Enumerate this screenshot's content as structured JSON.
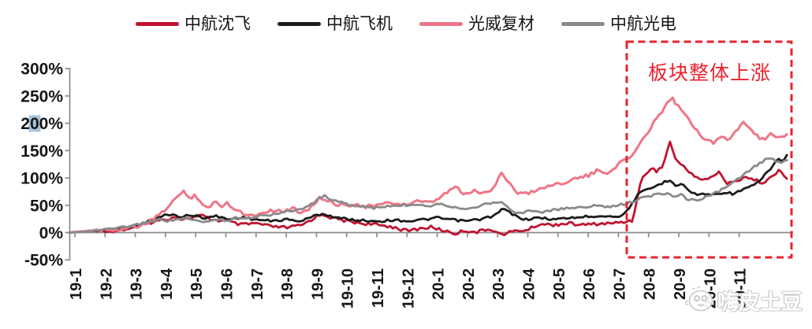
{
  "colors": {
    "background": "#ffffff",
    "axis": "#8c8c8c",
    "axis_text": "#161616",
    "annotation_red": "#e8232e",
    "selection_highlight": "#a9c2d9",
    "series_red": "#c01430",
    "series_black": "#1c1c1c",
    "series_pink": "#ee7586",
    "series_gray": "#8a8a8a",
    "watermark_outline": "#c9c9c9"
  },
  "legend": {
    "items": [
      {
        "label": "中航沈飞",
        "color": "#c01430"
      },
      {
        "label": "中航飞机",
        "color": "#1c1c1c"
      },
      {
        "label": "光威复材",
        "color": "#ee7586"
      },
      {
        "label": "中航光电",
        "color": "#8a8a8a"
      }
    ]
  },
  "annotation": {
    "label": "板块整体上涨"
  },
  "watermark": {
    "text": "嗨皮土豆",
    "icon": "potato-face-icon"
  },
  "quirks": {
    "selection_highlight_on_y_label": "200%",
    "highlighted_char": "0"
  },
  "chart_data": {
    "type": "line",
    "title": "",
    "xlabel": "",
    "ylabel": "",
    "grid": false,
    "legend_position": "top",
    "y_axis": {
      "min": -50,
      "max": 300,
      "step": 50,
      "unit": "%",
      "tick_labels": [
        "300%",
        "250%",
        "200%",
        "150%",
        "100%",
        "50%",
        "0%",
        "-50%"
      ]
    },
    "x_axis": {
      "tick_labels": [
        "19-1",
        "19-2",
        "19-3",
        "19-4",
        "19-5",
        "19-6",
        "19-7",
        "19-8",
        "19-9",
        "19-10",
        "19-11",
        "19-12",
        "20-1",
        "20-2",
        "20-3",
        "20-4",
        "20-5",
        "20-6",
        "20-7",
        "20-8",
        "20-9",
        "20-10",
        "20-11"
      ],
      "label_rotation_deg": -90,
      "points_format": "series points are [month_index, cumulative_return_pct]; month_index 0 = 19-1, 22 = 20-11; data extends ~1.5 months past last tick"
    },
    "annotation_box": {
      "label": "板块整体上涨",
      "from_month_index": 18.3,
      "to_month_index": 23.7,
      "color": "#e8232e"
    },
    "series": [
      {
        "name": "中航沈飞",
        "color": "#c01430",
        "width": 2.8,
        "points": [
          [
            -0.18,
            0
          ],
          [
            0.3,
            2
          ],
          [
            0.8,
            4
          ],
          [
            1.2,
            2
          ],
          [
            1.7,
            6
          ],
          [
            2.2,
            14
          ],
          [
            2.6,
            20
          ],
          [
            3.0,
            24
          ],
          [
            3.3,
            29
          ],
          [
            3.6,
            24
          ],
          [
            3.9,
            28
          ],
          [
            4.2,
            31
          ],
          [
            4.5,
            24
          ],
          [
            5.0,
            21
          ],
          [
            5.5,
            14
          ],
          [
            6.0,
            17
          ],
          [
            6.5,
            11
          ],
          [
            7.0,
            9
          ],
          [
            7.5,
            13
          ],
          [
            7.9,
            26
          ],
          [
            8.2,
            34
          ],
          [
            8.5,
            27
          ],
          [
            9.0,
            21
          ],
          [
            9.5,
            17
          ],
          [
            10.0,
            14
          ],
          [
            10.5,
            11
          ],
          [
            11.0,
            3
          ],
          [
            11.4,
            7
          ],
          [
            11.8,
            10
          ],
          [
            12.2,
            4
          ],
          [
            12.6,
            -2
          ],
          [
            12.9,
            4
          ],
          [
            13.3,
            1
          ],
          [
            13.8,
            7
          ],
          [
            14.1,
            -4
          ],
          [
            14.5,
            2
          ],
          [
            15.0,
            5
          ],
          [
            15.4,
            16
          ],
          [
            15.8,
            14
          ],
          [
            16.3,
            17
          ],
          [
            16.8,
            14
          ],
          [
            17.3,
            16
          ],
          [
            17.8,
            17
          ],
          [
            18.1,
            19
          ],
          [
            18.45,
            22
          ],
          [
            18.6,
            55
          ],
          [
            18.75,
            95
          ],
          [
            18.9,
            108
          ],
          [
            19.1,
            118
          ],
          [
            19.3,
            112
          ],
          [
            19.5,
            125
          ],
          [
            19.7,
            168
          ],
          [
            19.85,
            140
          ],
          [
            20.0,
            128
          ],
          [
            20.2,
            118
          ],
          [
            20.5,
            105
          ],
          [
            20.8,
            96
          ],
          [
            21.1,
            101
          ],
          [
            21.35,
            112
          ],
          [
            21.6,
            89
          ],
          [
            21.9,
            94
          ],
          [
            22.2,
            103
          ],
          [
            22.5,
            96
          ],
          [
            22.8,
            92
          ],
          [
            23.1,
            102
          ],
          [
            23.35,
            114
          ],
          [
            23.6,
            100
          ]
        ]
      },
      {
        "name": "中航飞机",
        "color": "#1c1c1c",
        "width": 2.8,
        "points": [
          [
            -0.18,
            0
          ],
          [
            0.4,
            3
          ],
          [
            0.9,
            5
          ],
          [
            1.4,
            7
          ],
          [
            1.9,
            10
          ],
          [
            2.4,
            20
          ],
          [
            2.8,
            28
          ],
          [
            3.1,
            34
          ],
          [
            3.5,
            29
          ],
          [
            3.9,
            32
          ],
          [
            4.3,
            27
          ],
          [
            4.7,
            30
          ],
          [
            5.1,
            24
          ],
          [
            5.5,
            28
          ],
          [
            6.0,
            24
          ],
          [
            6.5,
            21
          ],
          [
            7.0,
            24
          ],
          [
            7.5,
            21
          ],
          [
            7.9,
            30
          ],
          [
            8.2,
            35
          ],
          [
            8.6,
            28
          ],
          [
            9.1,
            24
          ],
          [
            9.6,
            22
          ],
          [
            10.1,
            21
          ],
          [
            10.6,
            23
          ],
          [
            11.1,
            21
          ],
          [
            11.6,
            24
          ],
          [
            12.0,
            27
          ],
          [
            12.4,
            24
          ],
          [
            12.9,
            21
          ],
          [
            13.4,
            24
          ],
          [
            13.9,
            31
          ],
          [
            14.2,
            44
          ],
          [
            14.5,
            33
          ],
          [
            14.9,
            24
          ],
          [
            15.4,
            27
          ],
          [
            15.9,
            24
          ],
          [
            16.4,
            27
          ],
          [
            16.9,
            29
          ],
          [
            17.4,
            31
          ],
          [
            17.9,
            29
          ],
          [
            18.2,
            33
          ],
          [
            18.5,
            58
          ],
          [
            18.7,
            72
          ],
          [
            18.95,
            78
          ],
          [
            19.2,
            84
          ],
          [
            19.5,
            92
          ],
          [
            19.75,
            97
          ],
          [
            19.9,
            86
          ],
          [
            20.1,
            90
          ],
          [
            20.35,
            76
          ],
          [
            20.6,
            69
          ],
          [
            20.9,
            71
          ],
          [
            21.2,
            69
          ],
          [
            21.5,
            74
          ],
          [
            21.8,
            71
          ],
          [
            22.1,
            78
          ],
          [
            22.4,
            84
          ],
          [
            22.7,
            95
          ],
          [
            22.9,
            108
          ],
          [
            23.1,
            122
          ],
          [
            23.3,
            135
          ],
          [
            23.45,
            130
          ],
          [
            23.6,
            142
          ]
        ]
      },
      {
        "name": "光威复材",
        "color": "#ee7586",
        "width": 3.0,
        "points": [
          [
            -0.18,
            0
          ],
          [
            0.4,
            3
          ],
          [
            0.9,
            6
          ],
          [
            1.4,
            5
          ],
          [
            1.9,
            9
          ],
          [
            2.3,
            14
          ],
          [
            2.7,
            28
          ],
          [
            3.0,
            42
          ],
          [
            3.2,
            56
          ],
          [
            3.45,
            68
          ],
          [
            3.6,
            74
          ],
          [
            3.8,
            63
          ],
          [
            4.0,
            69
          ],
          [
            4.2,
            54
          ],
          [
            4.45,
            44
          ],
          [
            4.65,
            57
          ],
          [
            4.85,
            49
          ],
          [
            5.05,
            54
          ],
          [
            5.3,
            44
          ],
          [
            5.6,
            34
          ],
          [
            5.9,
            31
          ],
          [
            6.2,
            37
          ],
          [
            6.5,
            41
          ],
          [
            6.9,
            39
          ],
          [
            7.2,
            44
          ],
          [
            7.5,
            37
          ],
          [
            7.8,
            46
          ],
          [
            8.1,
            63
          ],
          [
            8.35,
            58
          ],
          [
            8.6,
            53
          ],
          [
            9.0,
            49
          ],
          [
            9.3,
            54
          ],
          [
            9.6,
            47
          ],
          [
            10.0,
            50
          ],
          [
            10.5,
            54
          ],
          [
            11.0,
            51
          ],
          [
            11.3,
            57
          ],
          [
            11.7,
            54
          ],
          [
            12.0,
            59
          ],
          [
            12.3,
            73
          ],
          [
            12.6,
            84
          ],
          [
            12.9,
            69
          ],
          [
            13.2,
            77
          ],
          [
            13.5,
            71
          ],
          [
            13.9,
            83
          ],
          [
            14.1,
            112
          ],
          [
            14.3,
            98
          ],
          [
            14.6,
            74
          ],
          [
            15.0,
            71
          ],
          [
            15.3,
            79
          ],
          [
            15.6,
            84
          ],
          [
            16.0,
            89
          ],
          [
            16.3,
            94
          ],
          [
            16.6,
            99
          ],
          [
            17.0,
            104
          ],
          [
            17.3,
            113
          ],
          [
            17.6,
            108
          ],
          [
            17.9,
            121
          ],
          [
            18.2,
            132
          ],
          [
            18.45,
            142
          ],
          [
            18.65,
            155
          ],
          [
            18.9,
            178
          ],
          [
            19.1,
            196
          ],
          [
            19.3,
            210
          ],
          [
            19.5,
            228
          ],
          [
            19.65,
            240
          ],
          [
            19.78,
            248
          ],
          [
            19.95,
            232
          ],
          [
            20.15,
            222
          ],
          [
            20.4,
            203
          ],
          [
            20.65,
            183
          ],
          [
            20.9,
            170
          ],
          [
            21.15,
            163
          ],
          [
            21.4,
            178
          ],
          [
            21.65,
            169
          ],
          [
            21.9,
            186
          ],
          [
            22.15,
            201
          ],
          [
            22.4,
            188
          ],
          [
            22.6,
            177
          ],
          [
            22.85,
            168
          ],
          [
            23.1,
            182
          ],
          [
            23.35,
            171
          ],
          [
            23.6,
            178
          ]
        ]
      },
      {
        "name": "中航光电",
        "color": "#8a8a8a",
        "width": 2.8,
        "points": [
          [
            -0.18,
            0
          ],
          [
            0.4,
            2
          ],
          [
            0.9,
            5
          ],
          [
            1.4,
            8
          ],
          [
            1.9,
            12
          ],
          [
            2.4,
            19
          ],
          [
            2.8,
            24
          ],
          [
            3.1,
            21
          ],
          [
            3.5,
            25
          ],
          [
            3.9,
            23
          ],
          [
            4.3,
            19
          ],
          [
            4.7,
            25
          ],
          [
            5.0,
            21
          ],
          [
            5.4,
            28
          ],
          [
            5.8,
            27
          ],
          [
            6.2,
            31
          ],
          [
            6.6,
            34
          ],
          [
            7.0,
            38
          ],
          [
            7.4,
            42
          ],
          [
            7.8,
            50
          ],
          [
            8.1,
            64
          ],
          [
            8.3,
            67
          ],
          [
            8.6,
            58
          ],
          [
            9.0,
            52
          ],
          [
            9.4,
            48
          ],
          [
            9.9,
            45
          ],
          [
            10.4,
            48
          ],
          [
            10.9,
            50
          ],
          [
            11.4,
            52
          ],
          [
            11.8,
            49
          ],
          [
            12.1,
            54
          ],
          [
            12.5,
            47
          ],
          [
            12.9,
            44
          ],
          [
            13.4,
            49
          ],
          [
            13.8,
            54
          ],
          [
            14.1,
            57
          ],
          [
            14.45,
            40
          ],
          [
            14.8,
            35
          ],
          [
            15.1,
            41
          ],
          [
            15.4,
            37
          ],
          [
            15.8,
            41
          ],
          [
            16.3,
            44
          ],
          [
            16.8,
            47
          ],
          [
            17.3,
            49
          ],
          [
            17.8,
            47
          ],
          [
            18.1,
            51
          ],
          [
            18.4,
            55
          ],
          [
            18.7,
            62
          ],
          [
            19.0,
            66
          ],
          [
            19.3,
            70
          ],
          [
            19.55,
            72
          ],
          [
            19.8,
            67
          ],
          [
            20.05,
            70
          ],
          [
            20.3,
            61
          ],
          [
            20.55,
            60
          ],
          [
            20.8,
            63
          ],
          [
            21.1,
            69
          ],
          [
            21.4,
            78
          ],
          [
            21.7,
            87
          ],
          [
            22.0,
            99
          ],
          [
            22.3,
            112
          ],
          [
            22.6,
            124
          ],
          [
            22.85,
            133
          ],
          [
            23.05,
            137
          ],
          [
            23.25,
            127
          ],
          [
            23.45,
            129
          ],
          [
            23.6,
            131
          ]
        ]
      }
    ]
  }
}
